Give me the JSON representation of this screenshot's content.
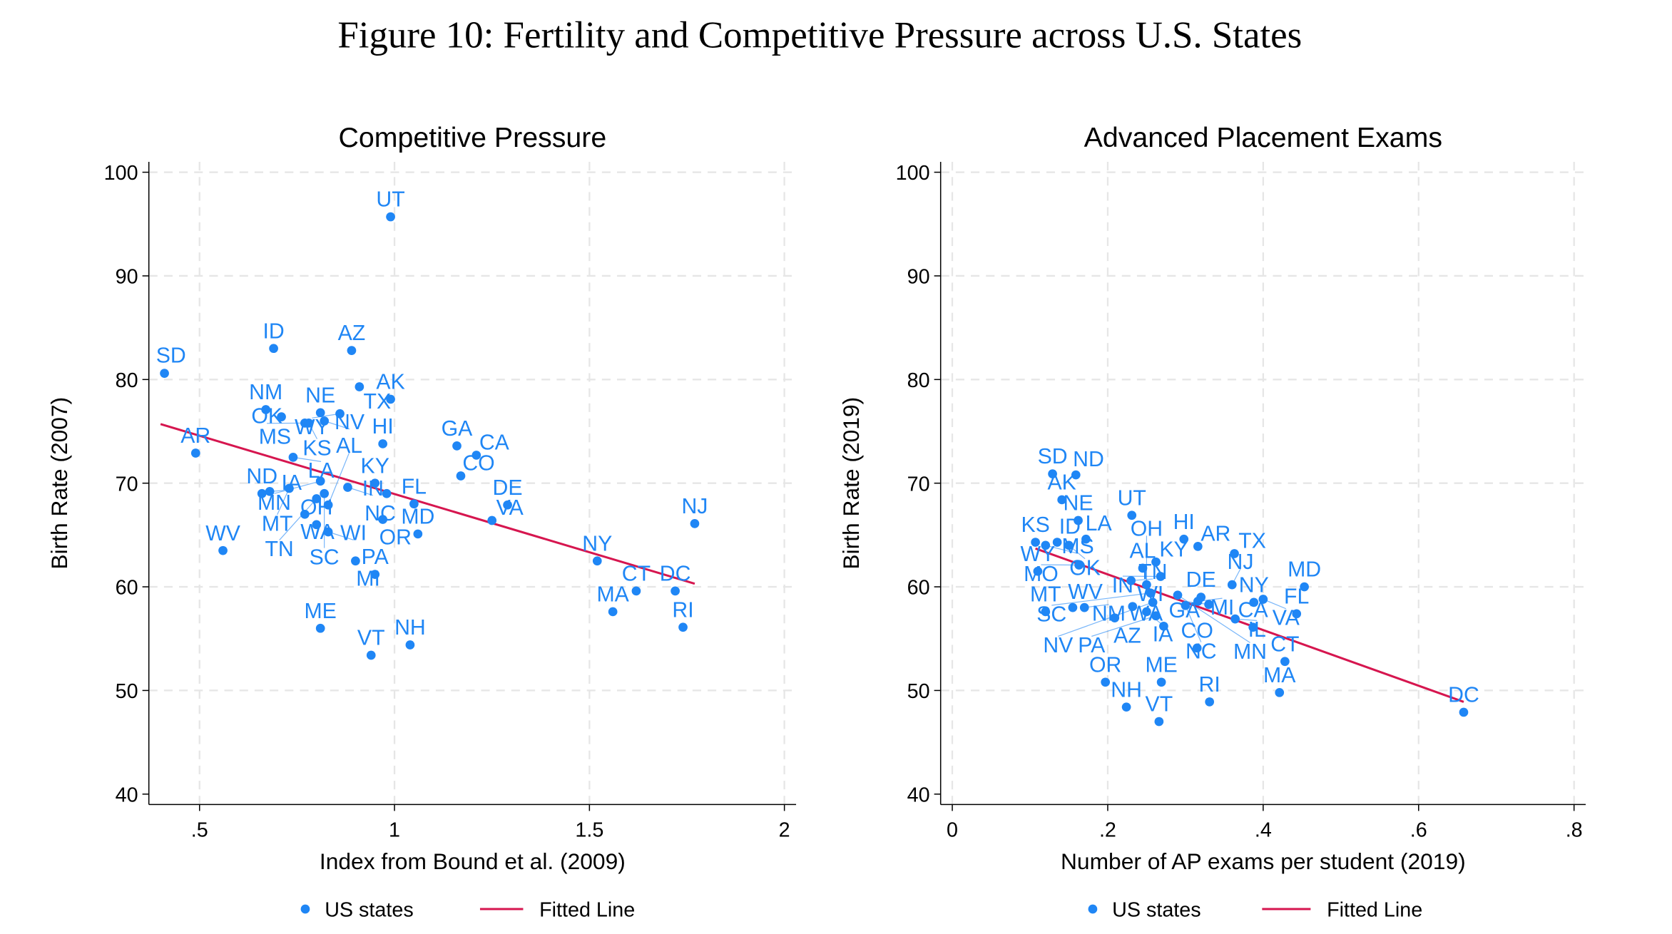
{
  "figure_title": "Figure 10: Fertility and Competitive Pressure across U.S. States",
  "colors": {
    "points": "#1f86f5",
    "fit": "#d6164f",
    "grid": "#e6e6e6",
    "axis": "#000000"
  },
  "chart_data": [
    {
      "type": "scatter",
      "title": "Competitive Pressure",
      "xlabel": "Index from Bound et al. (2009)",
      "ylabel": "Birth Rate (2007)",
      "xlim": [
        0.37,
        2.03
      ],
      "ylim": [
        39,
        101
      ],
      "xticks": [
        0.5,
        1,
        1.5,
        2
      ],
      "xtick_labels": [
        ".5",
        "1",
        "1.5",
        "2"
      ],
      "yticks": [
        40,
        50,
        60,
        70,
        80,
        90,
        100
      ],
      "ytick_labels": [
        "40",
        "50",
        "60",
        "70",
        "80",
        "90",
        "100"
      ],
      "grid": true,
      "legend": {
        "position": "bottom",
        "entries": [
          "US states",
          "Fitted Line"
        ]
      },
      "fit": {
        "x": [
          0.4,
          1.77
        ],
        "y": [
          75.7,
          60.3
        ]
      },
      "points": [
        {
          "label": "UT",
          "x": 0.99,
          "y": 95.7
        },
        {
          "label": "SD",
          "x": 0.41,
          "y": 80.6
        },
        {
          "label": "ID",
          "x": 0.69,
          "y": 83.0
        },
        {
          "label": "AZ",
          "x": 0.89,
          "y": 82.8
        },
        {
          "label": "TX",
          "x": 0.91,
          "y": 79.3
        },
        {
          "label": "AK",
          "x": 0.99,
          "y": 78.1
        },
        {
          "label": "NM",
          "x": 0.67,
          "y": 77.1
        },
        {
          "label": "MS",
          "x": 0.71,
          "y": 76.4
        },
        {
          "label": "OK",
          "x": 0.77,
          "y": 75.8
        },
        {
          "label": "KS",
          "x": 0.78,
          "y": 75.8
        },
        {
          "label": "NE",
          "x": 0.81,
          "y": 76.8
        },
        {
          "label": "NV",
          "x": 0.82,
          "y": 76.0
        },
        {
          "label": "WY",
          "x": 0.86,
          "y": 76.7
        },
        {
          "label": "HI",
          "x": 0.97,
          "y": 73.8
        },
        {
          "label": "LA",
          "x": 0.74,
          "y": 72.5
        },
        {
          "label": "AR",
          "x": 0.49,
          "y": 72.9
        },
        {
          "label": "GA",
          "x": 1.16,
          "y": 73.6
        },
        {
          "label": "CA",
          "x": 1.21,
          "y": 72.7
        },
        {
          "label": "CO",
          "x": 1.17,
          "y": 70.7
        },
        {
          "label": "IA",
          "x": 0.68,
          "y": 69.2
        },
        {
          "label": "ND",
          "x": 0.66,
          "y": 69.0
        },
        {
          "label": "MT",
          "x": 0.73,
          "y": 69.5
        },
        {
          "label": "WA",
          "x": 0.77,
          "y": 67.0
        },
        {
          "label": "MN",
          "x": 0.81,
          "y": 70.2
        },
        {
          "label": "SC",
          "x": 0.82,
          "y": 69.0
        },
        {
          "label": "TN",
          "x": 0.8,
          "y": 68.5
        },
        {
          "label": "AL",
          "x": 0.83,
          "y": 67.9
        },
        {
          "label": "IN",
          "x": 0.88,
          "y": 69.6
        },
        {
          "label": "KY",
          "x": 0.95,
          "y": 70.0
        },
        {
          "label": "NC",
          "x": 0.98,
          "y": 69.0
        },
        {
          "label": "FL",
          "x": 1.05,
          "y": 68.0
        },
        {
          "label": "OR",
          "x": 0.97,
          "y": 66.5
        },
        {
          "label": "MD",
          "x": 1.06,
          "y": 65.1
        },
        {
          "label": "OH",
          "x": 0.8,
          "y": 66.0
        },
        {
          "label": "WI",
          "x": 0.83,
          "y": 65.3
        },
        {
          "label": "MI",
          "x": 0.9,
          "y": 62.5
        },
        {
          "label": "PA",
          "x": 0.95,
          "y": 61.2
        },
        {
          "label": "WV",
          "x": 0.56,
          "y": 63.5
        },
        {
          "label": "ME",
          "x": 0.81,
          "y": 56.0
        },
        {
          "label": "VT",
          "x": 0.94,
          "y": 53.4
        },
        {
          "label": "NH",
          "x": 1.04,
          "y": 54.4
        },
        {
          "label": "NY",
          "x": 1.52,
          "y": 62.5
        },
        {
          "label": "NJ",
          "x": 1.77,
          "y": 66.1
        },
        {
          "label": "DE",
          "x": 1.29,
          "y": 67.9
        },
        {
          "label": "VA",
          "x": 1.25,
          "y": 66.4
        },
        {
          "label": "CT",
          "x": 1.62,
          "y": 59.6
        },
        {
          "label": "DC",
          "x": 1.72,
          "y": 59.6
        },
        {
          "label": "MA",
          "x": 1.56,
          "y": 57.6
        },
        {
          "label": "RI",
          "x": 1.74,
          "y": 56.1
        }
      ]
    },
    {
      "type": "scatter",
      "title": "Advanced Placement Exams",
      "xlabel": "Number of AP exams per student (2019)",
      "ylabel": "Birth Rate (2019)",
      "xlim": [
        -0.015,
        0.815
      ],
      "ylim": [
        39,
        101
      ],
      "xticks": [
        0,
        0.2,
        0.4,
        0.6,
        0.8
      ],
      "xtick_labels": [
        "0",
        ".2",
        ".4",
        ".6",
        ".8"
      ],
      "yticks": [
        40,
        50,
        60,
        70,
        80,
        90,
        100
      ],
      "ytick_labels": [
        "40",
        "50",
        "60",
        "70",
        "80",
        "90",
        "100"
      ],
      "grid": true,
      "legend": {
        "position": "bottom",
        "entries": [
          "US states",
          "Fitted Line"
        ]
      },
      "fit": {
        "x": [
          0.107,
          0.658
        ],
        "y": [
          63.7,
          48.9
        ]
      },
      "points": [
        {
          "label": "SD",
          "x": 0.129,
          "y": 70.9
        },
        {
          "label": "ND",
          "x": 0.159,
          "y": 70.8
        },
        {
          "label": "AK",
          "x": 0.141,
          "y": 68.4
        },
        {
          "label": "NE",
          "x": 0.162,
          "y": 66.4
        },
        {
          "label": "UT",
          "x": 0.231,
          "y": 66.9
        },
        {
          "label": "KS",
          "x": 0.107,
          "y": 64.3
        },
        {
          "label": "MS",
          "x": 0.12,
          "y": 64.0
        },
        {
          "label": "ID",
          "x": 0.135,
          "y": 64.3
        },
        {
          "label": "OK",
          "x": 0.15,
          "y": 64.0
        },
        {
          "label": "LA",
          "x": 0.172,
          "y": 64.6
        },
        {
          "label": "WY",
          "x": 0.11,
          "y": 61.5
        },
        {
          "label": "MT",
          "x": 0.12,
          "y": 57.6
        },
        {
          "label": "MO",
          "x": 0.163,
          "y": 62.1
        },
        {
          "label": "HI",
          "x": 0.298,
          "y": 64.6
        },
        {
          "label": "AR",
          "x": 0.316,
          "y": 63.9
        },
        {
          "label": "TX",
          "x": 0.363,
          "y": 63.2
        },
        {
          "label": "KY",
          "x": 0.262,
          "y": 62.4
        },
        {
          "label": "AL",
          "x": 0.245,
          "y": 61.8
        },
        {
          "label": "IN",
          "x": 0.268,
          "y": 61.0
        },
        {
          "label": "TN",
          "x": 0.23,
          "y": 60.6
        },
        {
          "label": "OH",
          "x": 0.25,
          "y": 60.2
        },
        {
          "label": "SC",
          "x": 0.255,
          "y": 59.4
        },
        {
          "label": "WV",
          "x": 0.155,
          "y": 58.0
        },
        {
          "label": "NM",
          "x": 0.17,
          "y": 58.0
        },
        {
          "label": "AZ",
          "x": 0.209,
          "y": 57.0
        },
        {
          "label": "WI",
          "x": 0.232,
          "y": 58.1
        },
        {
          "label": "IA",
          "x": 0.25,
          "y": 57.6
        },
        {
          "label": "NV",
          "x": 0.258,
          "y": 58.5
        },
        {
          "label": "PA",
          "x": 0.262,
          "y": 57.2
        },
        {
          "label": "WA",
          "x": 0.272,
          "y": 56.2
        },
        {
          "label": "NC",
          "x": 0.3,
          "y": 58.2
        },
        {
          "label": "MN",
          "x": 0.29,
          "y": 59.2
        },
        {
          "label": "DE",
          "x": 0.32,
          "y": 59.0
        },
        {
          "label": "MI",
          "x": 0.316,
          "y": 58.6
        },
        {
          "label": "GA",
          "x": 0.33,
          "y": 58.3
        },
        {
          "label": "NJ",
          "x": 0.36,
          "y": 60.2
        },
        {
          "label": "MD",
          "x": 0.453,
          "y": 60.0
        },
        {
          "label": "FL",
          "x": 0.443,
          "y": 57.4
        },
        {
          "label": "NY",
          "x": 0.388,
          "y": 58.5
        },
        {
          "label": "VA",
          "x": 0.4,
          "y": 58.8
        },
        {
          "label": "IL",
          "x": 0.364,
          "y": 56.9
        },
        {
          "label": "CA",
          "x": 0.387,
          "y": 56.1
        },
        {
          "label": "CO",
          "x": 0.315,
          "y": 54.1
        },
        {
          "label": "OR",
          "x": 0.197,
          "y": 50.8
        },
        {
          "label": "NH",
          "x": 0.224,
          "y": 48.4
        },
        {
          "label": "ME",
          "x": 0.269,
          "y": 50.8
        },
        {
          "label": "VT",
          "x": 0.266,
          "y": 47.0
        },
        {
          "label": "RI",
          "x": 0.331,
          "y": 48.9
        },
        {
          "label": "CT",
          "x": 0.428,
          "y": 52.8
        },
        {
          "label": "MA",
          "x": 0.421,
          "y": 49.8
        },
        {
          "label": "DC",
          "x": 0.658,
          "y": 47.9
        }
      ]
    }
  ]
}
